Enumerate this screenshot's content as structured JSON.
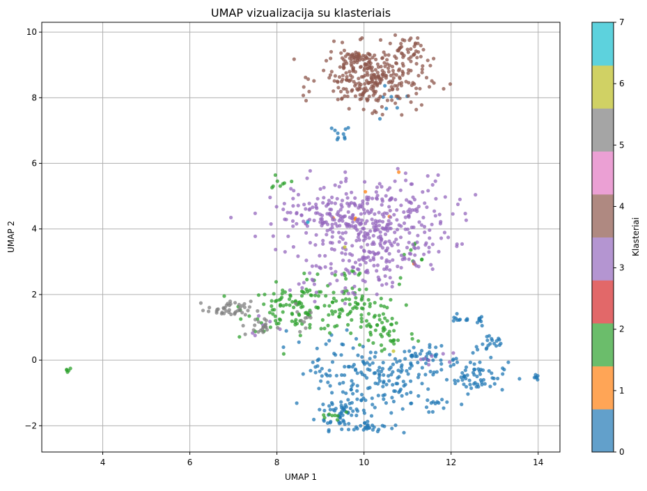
{
  "chart_data": {
    "type": "scatter",
    "title": "UMAP vizualizacija su klasteriais",
    "xlabel": "UMAP 1",
    "ylabel": "UMAP 2",
    "xlim": [
      2.6,
      14.5
    ],
    "ylim": [
      -2.8,
      10.3
    ],
    "xticks": [
      4,
      6,
      8,
      10,
      12,
      14
    ],
    "yticks": [
      -2,
      0,
      2,
      4,
      6,
      8,
      10
    ],
    "grid": true,
    "colorbar": {
      "label": "Klasteriai",
      "ticks": [
        0,
        1,
        2,
        3,
        4,
        5,
        6,
        7
      ],
      "colors": [
        "#1f77b4",
        "#ff7f0e",
        "#2ca02c",
        "#d62728",
        "#9467bd",
        "#8c564b",
        "#e377c2",
        "#7f7f7f",
        "#bcbd22",
        "#17becf"
      ]
    },
    "clusters": [
      {
        "label": "0",
        "color": "#1f77b4",
        "regions": [
          {
            "cx": 10.2,
            "cy": -0.6,
            "sx": 0.6,
            "sy": 0.5,
            "n": 140
          },
          {
            "cx": 9.5,
            "cy": -1.6,
            "sx": 0.3,
            "sy": 0.25,
            "n": 55
          },
          {
            "cx": 10.1,
            "cy": -2.05,
            "sx": 0.3,
            "sy": 0.08,
            "n": 25
          },
          {
            "cx": 12.6,
            "cy": -0.5,
            "sx": 0.35,
            "sy": 0.25,
            "n": 60
          },
          {
            "cx": 11.4,
            "cy": 0.0,
            "sx": 0.4,
            "sy": 0.2,
            "n": 45
          },
          {
            "cx": 12.9,
            "cy": 0.5,
            "sx": 0.2,
            "sy": 0.15,
            "n": 20
          },
          {
            "cx": 11.6,
            "cy": -1.3,
            "sx": 0.25,
            "sy": 0.25,
            "n": 15
          },
          {
            "cx": 12.2,
            "cy": 1.25,
            "sx": 0.15,
            "sy": 0.05,
            "n": 10
          },
          {
            "cx": 12.7,
            "cy": 1.2,
            "sx": 0.08,
            "sy": 0.1,
            "n": 8
          },
          {
            "cx": 13.95,
            "cy": -0.53,
            "sx": 0.04,
            "sy": 0.04,
            "n": 6
          },
          {
            "cx": 9.4,
            "cy": 6.85,
            "sx": 0.15,
            "sy": 0.15,
            "n": 10
          },
          {
            "cx": 10.6,
            "cy": 7.8,
            "sx": 0.25,
            "sy": 0.3,
            "n": 8
          },
          {
            "cx": 8.9,
            "cy": 0.3,
            "sx": 0.5,
            "sy": 0.4,
            "n": 12
          },
          {
            "cx": 9.0,
            "cy": -0.35,
            "sx": 0.15,
            "sy": 0.08,
            "n": 10
          }
        ]
      },
      {
        "label": "1",
        "color": "#ff7f0e",
        "regions": [
          {
            "cx": 9.9,
            "cy": 4.6,
            "sx": 0.6,
            "sy": 0.8,
            "n": 6
          },
          {
            "cx": 9.9,
            "cy": 9.3,
            "sx": 0.02,
            "sy": 0.02,
            "n": 1
          },
          {
            "cx": 11.1,
            "cy": 2.9,
            "sx": 0.05,
            "sy": 0.05,
            "n": 2
          }
        ]
      },
      {
        "label": "2",
        "color": "#2ca02c",
        "regions": [
          {
            "cx": 8.5,
            "cy": 1.6,
            "sx": 0.6,
            "sy": 0.35,
            "n": 110
          },
          {
            "cx": 9.8,
            "cy": 1.5,
            "sx": 0.5,
            "sy": 0.4,
            "n": 70
          },
          {
            "cx": 10.5,
            "cy": 0.8,
            "sx": 0.35,
            "sy": 0.35,
            "n": 35
          },
          {
            "cx": 8.1,
            "cy": 5.5,
            "sx": 0.15,
            "sy": 0.15,
            "n": 8
          },
          {
            "cx": 3.2,
            "cy": -0.28,
            "sx": 0.05,
            "sy": 0.03,
            "n": 5
          },
          {
            "cx": 9.3,
            "cy": -1.7,
            "sx": 0.2,
            "sy": 0.15,
            "n": 8
          },
          {
            "cx": 11.2,
            "cy": 3.0,
            "sx": 0.3,
            "sy": 0.3,
            "n": 8
          },
          {
            "cx": 9.5,
            "cy": 2.6,
            "sx": 0.3,
            "sy": 0.2,
            "n": 10
          }
        ]
      },
      {
        "label": "3",
        "color": "#9467bd",
        "regions": [
          {
            "cx": 10.2,
            "cy": 4.2,
            "sx": 0.9,
            "sy": 0.7,
            "n": 330
          },
          {
            "cx": 9.2,
            "cy": 4.3,
            "sx": 0.6,
            "sy": 0.3,
            "n": 80
          },
          {
            "cx": 10.2,
            "cy": 2.9,
            "sx": 0.5,
            "sy": 0.4,
            "n": 70
          },
          {
            "cx": 8.9,
            "cy": 2.5,
            "sx": 0.3,
            "sy": 0.3,
            "n": 20
          },
          {
            "cx": 11.6,
            "cy": 0.0,
            "sx": 0.3,
            "sy": 0.2,
            "n": 8
          },
          {
            "cx": 7.8,
            "cy": 0.9,
            "sx": 0.2,
            "sy": 0.2,
            "n": 6
          }
        ]
      },
      {
        "label": "4",
        "color": "#8c564b",
        "regions": [
          {
            "cx": 10.2,
            "cy": 8.6,
            "sx": 0.6,
            "sy": 0.45,
            "n": 280
          },
          {
            "cx": 9.7,
            "cy": 9.2,
            "sx": 0.2,
            "sy": 0.12,
            "n": 30
          },
          {
            "cx": 10.9,
            "cy": 9.4,
            "sx": 0.25,
            "sy": 0.2,
            "n": 35
          }
        ]
      },
      {
        "label": "5",
        "color": "#7f7f7f",
        "regions": [
          {
            "cx": 6.9,
            "cy": 1.55,
            "sx": 0.25,
            "sy": 0.12,
            "n": 40
          },
          {
            "cx": 7.6,
            "cy": 1.0,
            "sx": 0.2,
            "sy": 0.15,
            "n": 20
          },
          {
            "cx": 8.7,
            "cy": 1.3,
            "sx": 0.3,
            "sy": 0.2,
            "n": 10
          }
        ]
      },
      {
        "label": "6",
        "color": "#bcbd22",
        "regions": [
          {
            "cx": 10.75,
            "cy": 0.28,
            "sx": 0.03,
            "sy": 0.03,
            "n": 1
          },
          {
            "cx": 9.6,
            "cy": 3.45,
            "sx": 0.03,
            "sy": 0.03,
            "n": 1
          }
        ]
      },
      {
        "label": "7",
        "color": "#17becf",
        "regions": [
          {
            "cx": 8.7,
            "cy": 4.2,
            "sx": 0.02,
            "sy": 0.02,
            "n": 1
          }
        ]
      }
    ]
  }
}
